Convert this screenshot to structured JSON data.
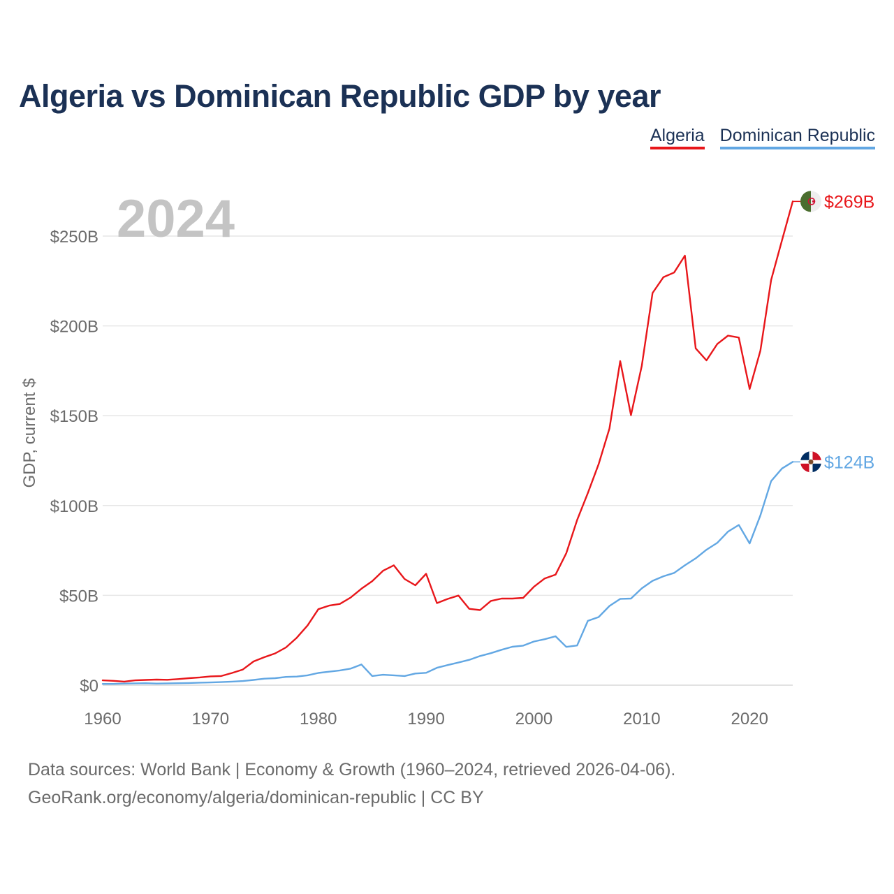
{
  "title": "Algeria vs Dominican Republic GDP by year",
  "legend": {
    "algeria": "Algeria",
    "dominican_republic": "Dominican Republic"
  },
  "year_label": "2024",
  "footer": {
    "line1": "Data sources: World Bank | Economy & Growth (1960–2024, retrieved 2026-04-06).",
    "line2": "GeoRank.org/economy/algeria/dominican-republic | CC BY"
  },
  "colors": {
    "algeria": "#e8161a",
    "dominican_republic": "#62a7e3",
    "title": "#1b3155",
    "axis_text": "#6b6b6b",
    "grid": "#e6e6e6",
    "year_watermark": "#c4c4c4"
  },
  "chart_data": {
    "type": "line",
    "title": "Algeria vs Dominican Republic GDP by year",
    "xlabel": "",
    "ylabel": "GDP, current $",
    "xlim": [
      1960,
      2024
    ],
    "ylim": [
      0,
      270
    ],
    "unit": "billion US$",
    "x_ticks": [
      1960,
      1970,
      1980,
      1990,
      2000,
      2010,
      2020
    ],
    "y_ticks": [
      {
        "value": 0,
        "label": "$0"
      },
      {
        "value": 50,
        "label": "$50B"
      },
      {
        "value": 100,
        "label": "$100B"
      },
      {
        "value": 150,
        "label": "$150B"
      },
      {
        "value": 200,
        "label": "$200B"
      },
      {
        "value": 250,
        "label": "$250B"
      }
    ],
    "grid": true,
    "legend_position": "top-right",
    "x": [
      1960,
      1961,
      1962,
      1963,
      1964,
      1965,
      1966,
      1967,
      1968,
      1969,
      1970,
      1971,
      1972,
      1973,
      1974,
      1975,
      1976,
      1977,
      1978,
      1979,
      1980,
      1981,
      1982,
      1983,
      1984,
      1985,
      1986,
      1987,
      1988,
      1989,
      1990,
      1991,
      1992,
      1993,
      1994,
      1995,
      1996,
      1997,
      1998,
      1999,
      2000,
      2001,
      2002,
      2003,
      2004,
      2005,
      2006,
      2007,
      2008,
      2009,
      2010,
      2011,
      2012,
      2013,
      2014,
      2015,
      2016,
      2017,
      2018,
      2019,
      2020,
      2021,
      2022,
      2023,
      2024
    ],
    "series": [
      {
        "name": "Algeria",
        "end_label": "$269B",
        "values": [
          2.7,
          2.4,
          2.0,
          2.7,
          2.9,
          3.1,
          3.0,
          3.4,
          3.9,
          4.3,
          4.9,
          5.1,
          6.8,
          8.7,
          13.2,
          15.6,
          17.7,
          21.0,
          26.4,
          33.2,
          42.3,
          44.3,
          45.2,
          48.8,
          53.7,
          57.9,
          63.7,
          66.7,
          59.1,
          55.6,
          62.0,
          45.7,
          48.0,
          49.9,
          42.5,
          41.8,
          46.9,
          48.2,
          48.2,
          48.6,
          54.8,
          59.4,
          61.5,
          73.5,
          91.9,
          107.0,
          123.0,
          142.9,
          180.4,
          150.3,
          177.8,
          218.3,
          227.1,
          229.7,
          239.1,
          187.5,
          180.8,
          189.9,
          194.6,
          193.5,
          164.9,
          186.2,
          225.6,
          247.6,
          269.3
        ]
      },
      {
        "name": "Dominican Republic",
        "end_label": "$124B",
        "values": [
          0.7,
          0.7,
          0.9,
          1.0,
          1.1,
          0.9,
          1.0,
          1.1,
          1.2,
          1.4,
          1.5,
          1.7,
          2.0,
          2.3,
          2.9,
          3.6,
          3.9,
          4.6,
          4.8,
          5.5,
          6.8,
          7.5,
          8.2,
          9.2,
          11.5,
          5.1,
          5.8,
          5.5,
          5.1,
          6.5,
          6.9,
          9.7,
          11.2,
          12.6,
          14.1,
          16.2,
          17.8,
          19.7,
          21.4,
          22.0,
          24.3,
          25.6,
          27.2,
          21.3,
          22.1,
          35.8,
          37.9,
          44.1,
          48.0,
          48.2,
          53.9,
          58.1,
          60.6,
          62.5,
          66.7,
          70.6,
          75.4,
          79.2,
          85.5,
          89.2,
          78.9,
          94.5,
          113.6,
          120.6,
          124.3
        ]
      }
    ]
  }
}
